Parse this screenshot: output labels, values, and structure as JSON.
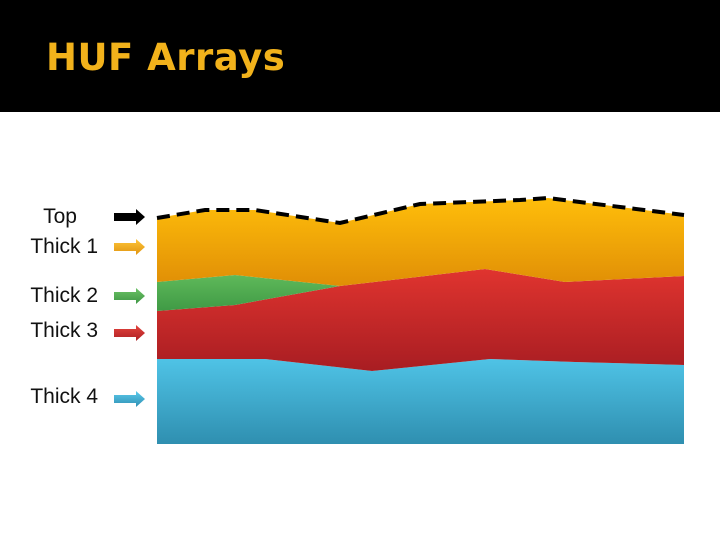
{
  "title": "HUF Arrays",
  "layers": [
    {
      "key": "top",
      "label": "Top",
      "color": "#000000",
      "icon": "arrow-right-icon"
    },
    {
      "key": "thick1",
      "label": "Thick 1",
      "color": "#f0a20a",
      "icon": "arrow-right-icon"
    },
    {
      "key": "thick2",
      "label": "Thick 2",
      "color": "#4ea84e",
      "icon": "arrow-right-icon"
    },
    {
      "key": "thick3",
      "label": "Thick 3",
      "color": "#c8282a",
      "icon": "arrow-right-icon"
    },
    {
      "key": "thick4",
      "label": "Thick 4",
      "color": "#3fb0d6",
      "icon": "arrow-right-icon"
    }
  ],
  "colors": {
    "title_bar": "#000000",
    "title_text": "#f2b21b",
    "top_line": "#000000"
  }
}
